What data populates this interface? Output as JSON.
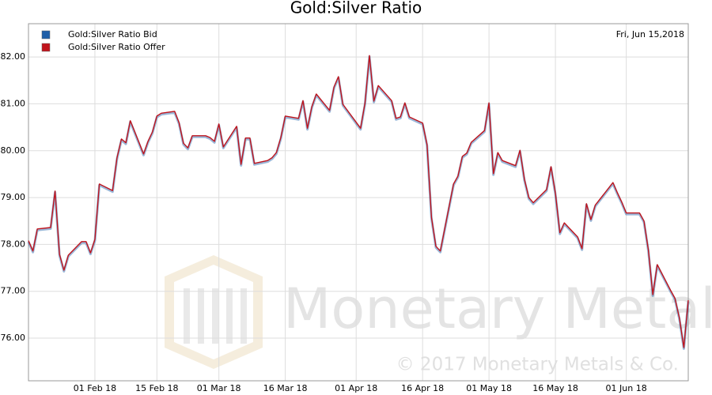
{
  "chart_data": {
    "type": "line",
    "title": "Gold:Silver Ratio",
    "date_label": "Fri, Jun 15,2018",
    "watermark": "Monetary Metals",
    "copyright": "© 2017 Monetary Metals & Co.",
    "x": [
      "2018-01-17",
      "2018-01-18",
      "2018-01-19",
      "2018-01-22",
      "2018-01-23",
      "2018-01-24",
      "2018-01-25",
      "2018-01-26",
      "2018-01-29",
      "2018-01-30",
      "2018-01-31",
      "2018-02-01",
      "2018-02-02",
      "2018-02-05",
      "2018-02-06",
      "2018-02-07",
      "2018-02-08",
      "2018-02-09",
      "2018-02-12",
      "2018-02-13",
      "2018-02-14",
      "2018-02-15",
      "2018-02-16",
      "2018-02-19",
      "2018-02-20",
      "2018-02-21",
      "2018-02-22",
      "2018-02-23",
      "2018-02-26",
      "2018-02-27",
      "2018-02-28",
      "2018-03-01",
      "2018-03-02",
      "2018-03-05",
      "2018-03-06",
      "2018-03-07",
      "2018-03-08",
      "2018-03-09",
      "2018-03-12",
      "2018-03-13",
      "2018-03-14",
      "2018-03-15",
      "2018-03-16",
      "2018-03-19",
      "2018-03-20",
      "2018-03-21",
      "2018-03-22",
      "2018-03-23",
      "2018-03-26",
      "2018-03-27",
      "2018-03-28",
      "2018-03-29",
      "2018-04-02",
      "2018-04-03",
      "2018-04-04",
      "2018-04-05",
      "2018-04-06",
      "2018-04-09",
      "2018-04-10",
      "2018-04-11",
      "2018-04-12",
      "2018-04-13",
      "2018-04-16",
      "2018-04-17",
      "2018-04-18",
      "2018-04-19",
      "2018-04-20",
      "2018-04-23",
      "2018-04-24",
      "2018-04-25",
      "2018-04-26",
      "2018-04-27",
      "2018-04-30",
      "2018-05-01",
      "2018-05-02",
      "2018-05-03",
      "2018-05-04",
      "2018-05-07",
      "2018-05-08",
      "2018-05-09",
      "2018-05-10",
      "2018-05-11",
      "2018-05-14",
      "2018-05-15",
      "2018-05-16",
      "2018-05-17",
      "2018-05-18",
      "2018-05-21",
      "2018-05-22",
      "2018-05-23",
      "2018-05-24",
      "2018-05-25",
      "2018-05-29",
      "2018-05-30",
      "2018-05-31",
      "2018-06-01",
      "2018-06-04",
      "2018-06-05",
      "2018-06-06",
      "2018-06-07",
      "2018-06-08",
      "2018-06-11",
      "2018-06-12",
      "2018-06-13",
      "2018-06-14",
      "2018-06-15"
    ],
    "series": [
      {
        "name": "Gold:Silver Ratio Bid",
        "color": "#1f5fa8",
        "values": [
          78.08,
          77.86,
          78.33,
          78.36,
          79.14,
          77.79,
          77.45,
          77.77,
          78.06,
          78.06,
          77.82,
          78.11,
          79.29,
          79.15,
          79.85,
          80.25,
          80.17,
          80.64,
          79.93,
          80.2,
          80.4,
          80.74,
          80.8,
          80.84,
          80.6,
          80.16,
          80.06,
          80.32,
          80.32,
          80.28,
          80.2,
          80.57,
          80.08,
          80.52,
          79.71,
          80.27,
          80.27,
          79.73,
          79.79,
          79.85,
          79.96,
          80.28,
          80.74,
          80.69,
          81.07,
          80.48,
          80.94,
          81.21,
          80.86,
          81.36,
          81.58,
          80.99,
          80.48,
          81.02,
          82.03,
          81.06,
          81.39,
          81.07,
          80.69,
          80.72,
          81.02,
          80.72,
          80.59,
          80.13,
          78.58,
          77.96,
          77.86,
          79.29,
          79.46,
          79.88,
          79.95,
          80.18,
          80.43,
          81.02,
          79.51,
          79.96,
          79.79,
          79.68,
          80.01,
          79.39,
          79.0,
          78.89,
          79.17,
          79.66,
          79.09,
          78.25,
          78.46,
          78.16,
          77.91,
          78.87,
          78.53,
          78.84,
          79.32,
          79.1,
          78.9,
          78.67,
          78.67,
          78.5,
          77.88,
          76.93,
          77.57,
          77.02,
          76.85,
          76.43,
          75.8,
          76.81
        ]
      },
      {
        "name": "Gold:Silver Ratio Offer",
        "color": "#c0141c",
        "values": [
          78.08,
          77.86,
          78.33,
          78.36,
          79.14,
          77.79,
          77.45,
          77.77,
          78.06,
          78.06,
          77.82,
          78.11,
          79.29,
          79.15,
          79.85,
          80.25,
          80.17,
          80.64,
          79.93,
          80.2,
          80.4,
          80.74,
          80.8,
          80.84,
          80.6,
          80.16,
          80.06,
          80.32,
          80.32,
          80.28,
          80.2,
          80.57,
          80.08,
          80.52,
          79.71,
          80.27,
          80.27,
          79.73,
          79.79,
          79.85,
          79.96,
          80.28,
          80.74,
          80.69,
          81.07,
          80.48,
          80.94,
          81.21,
          80.86,
          81.36,
          81.58,
          80.99,
          80.48,
          81.02,
          82.03,
          81.06,
          81.39,
          81.07,
          80.69,
          80.72,
          81.02,
          80.72,
          80.59,
          80.13,
          78.58,
          77.96,
          77.86,
          79.29,
          79.46,
          79.88,
          79.95,
          80.18,
          80.43,
          81.02,
          79.51,
          79.96,
          79.79,
          79.68,
          80.01,
          79.39,
          79.0,
          78.89,
          79.17,
          79.66,
          79.09,
          78.25,
          78.46,
          78.16,
          77.91,
          78.87,
          78.53,
          78.84,
          79.32,
          79.1,
          78.9,
          78.67,
          78.67,
          78.5,
          77.88,
          76.93,
          77.57,
          77.02,
          76.85,
          76.43,
          75.8,
          76.81
        ]
      }
    ],
    "xlim": [
      "2018-01-17",
      "2018-06-15"
    ],
    "xticks": [
      {
        "value": "2018-02-01",
        "label": "01 Feb 18"
      },
      {
        "value": "2018-02-15",
        "label": "15 Feb 18"
      },
      {
        "value": "2018-03-01",
        "label": "01 Mar 18"
      },
      {
        "value": "2018-03-16",
        "label": "16 Mar 18"
      },
      {
        "value": "2018-04-01",
        "label": "01 Apr 18"
      },
      {
        "value": "2018-04-16",
        "label": "16 Apr 18"
      },
      {
        "value": "2018-05-01",
        "label": "01 May 18"
      },
      {
        "value": "2018-05-16",
        "label": "16 May 18"
      },
      {
        "value": "2018-06-01",
        "label": "01 Jun 18"
      }
    ],
    "ylim": [
      75.09,
      82.71
    ],
    "yticks": [
      {
        "value": 76,
        "label": "76.00"
      },
      {
        "value": 77,
        "label": "77.00"
      },
      {
        "value": 78,
        "label": "78.00"
      },
      {
        "value": 79,
        "label": "79.00"
      },
      {
        "value": 80,
        "label": "80.00"
      },
      {
        "value": 81,
        "label": "81.00"
      },
      {
        "value": 82,
        "label": "82.00"
      }
    ],
    "grid": true
  }
}
